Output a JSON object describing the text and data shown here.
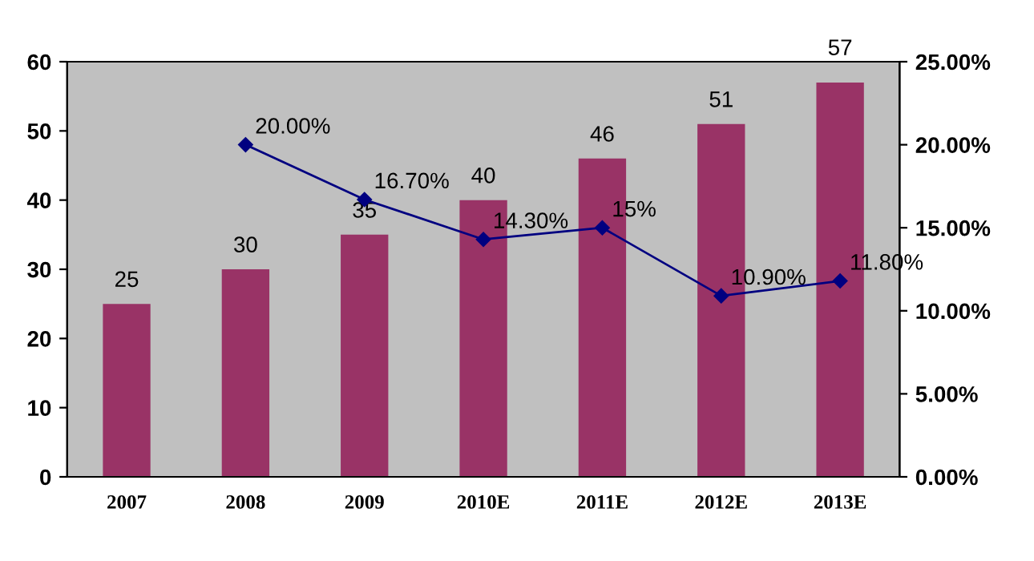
{
  "chart_data": {
    "type": "bar",
    "categories": [
      "2007",
      "2008",
      "2009",
      "2010E",
      "2011E",
      "2012E",
      "2013E"
    ],
    "series": [
      {
        "color": "#993366",
        "values": [
          25,
          30,
          35,
          40,
          46,
          51,
          57
        ],
        "value_labels": [
          "25",
          "30",
          "35",
          "40",
          "46",
          "51",
          "57"
        ]
      },
      {
        "type": "line",
        "axis": "y2",
        "color": "#000080",
        "marker": "diamond",
        "values": [
          null,
          20,
          16.7,
          14.3,
          15,
          10.9,
          11.8
        ],
        "value_labels": [
          null,
          "20.00%",
          "16.70%",
          "14.30%",
          "15%",
          "10.90%",
          "11.80%"
        ]
      }
    ],
    "ylim": [
      0,
      60
    ],
    "yticks": [
      0,
      10,
      20,
      30,
      40,
      50,
      60
    ],
    "y2lim": [
      0,
      25
    ],
    "y2ticks": [
      {
        "value": 0,
        "label": "0.00%"
      },
      {
        "value": 5,
        "label": "5.00%"
      },
      {
        "value": 10,
        "label": "10.00%"
      },
      {
        "value": 15,
        "label": "15.00%"
      },
      {
        "value": 20,
        "label": "20.00%"
      },
      {
        "value": 25,
        "label": "25.00%"
      }
    ],
    "grid": false,
    "legend": false
  }
}
